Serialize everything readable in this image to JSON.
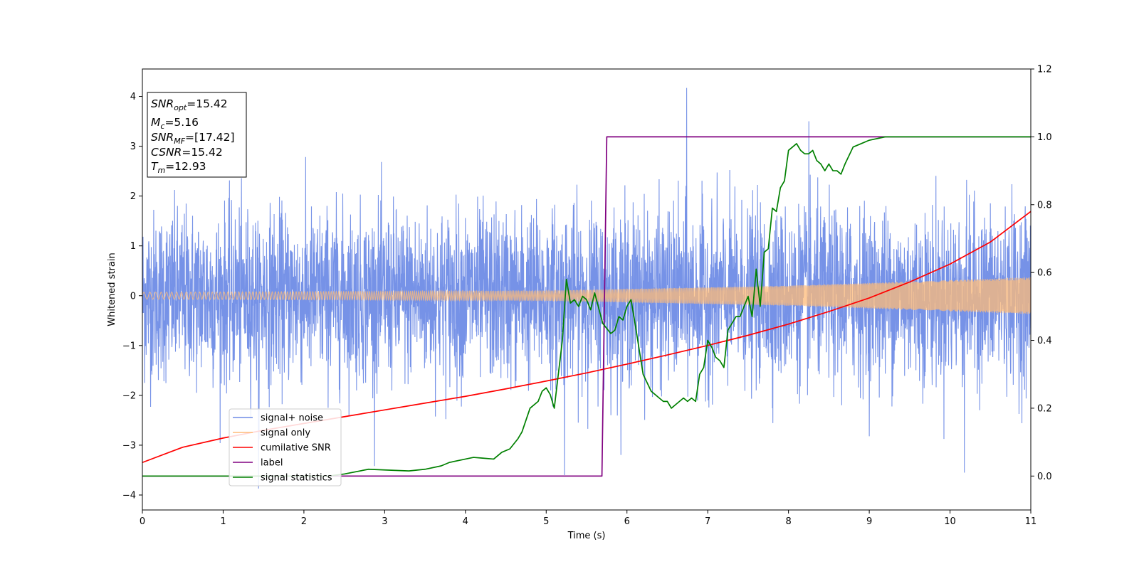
{
  "chart_data": {
    "type": "line",
    "title": "",
    "xlabel": "Time (s)",
    "ylabel": "Whitened strain",
    "xlim": [
      0,
      11
    ],
    "ylim": [
      -4.3,
      4.55
    ],
    "y2lim": [
      -0.1,
      1.2
    ],
    "xticks": [
      "0",
      "1",
      "2",
      "3",
      "4",
      "5",
      "6",
      "7",
      "8",
      "9",
      "10",
      "11"
    ],
    "yticks": [
      "−4",
      "−3",
      "−2",
      "−1",
      "0",
      "1",
      "2",
      "3",
      "4"
    ],
    "y2ticks": [
      "0.0",
      "0.2",
      "0.4",
      "0.6",
      "0.8",
      "1.0",
      "1.2"
    ],
    "grid": false,
    "legend_position": "lower-left",
    "annotation": {
      "snr_opt": {
        "main": "SNR",
        "sub": "opt",
        "value": "=15.42"
      },
      "mc": {
        "main": "M",
        "sub": "c",
        "value": "=5.16"
      },
      "snr_mf": {
        "main": "SNR",
        "sub": "MF",
        "value": "=[17.42]"
      },
      "csnr": {
        "main": "CSNR",
        "value": "=15.42"
      },
      "tm": {
        "main": "T",
        "sub": "m",
        "value": "=12.93"
      }
    },
    "series": [
      {
        "name": "signal+ noise",
        "color": "#6f8ce6",
        "axis": "left",
        "kind": "noise",
        "std": 0.85,
        "x_range": [
          0,
          11
        ],
        "min": -3.87,
        "max": 4.17
      },
      {
        "name": "signal only",
        "color": "#ffbb78",
        "axis": "left",
        "kind": "chirp",
        "x_range": [
          0,
          11
        ],
        "amplitude": {
          "x": [
            0,
            5,
            8,
            11
          ],
          "y": [
            0.07,
            0.1,
            0.2,
            0.37
          ]
        }
      },
      {
        "name": "cumilative SNR",
        "color": "#ff0000",
        "axis": "right",
        "x": [
          0,
          0.5,
          1,
          1.5,
          2,
          2.5,
          3,
          3.5,
          4,
          4.5,
          5,
          5.5,
          6,
          6.5,
          7,
          7.5,
          8,
          8.5,
          9,
          9.5,
          10,
          10.5,
          11
        ],
        "y": [
          0.04,
          0.085,
          0.112,
          0.135,
          0.155,
          0.175,
          0.195,
          0.215,
          0.235,
          0.257,
          0.28,
          0.304,
          0.33,
          0.357,
          0.385,
          0.415,
          0.448,
          0.485,
          0.525,
          0.572,
          0.625,
          0.69,
          0.78
        ]
      },
      {
        "name": "label",
        "color": "#800080",
        "axis": "right",
        "x": [
          0,
          5.69,
          5.75,
          11
        ],
        "y": [
          0.0,
          0.0,
          1.0,
          1.0
        ]
      },
      {
        "name": "signal statistics",
        "color": "#008000",
        "axis": "right",
        "x": [
          0,
          2.3,
          2.5,
          2.8,
          3.0,
          3.3,
          3.5,
          3.7,
          3.8,
          4.0,
          4.1,
          4.2,
          4.35,
          4.45,
          4.55,
          4.65,
          4.7,
          4.8,
          4.9,
          4.95,
          5.0,
          5.05,
          5.1,
          5.15,
          5.2,
          5.25,
          5.3,
          5.35,
          5.4,
          5.45,
          5.5,
          5.55,
          5.6,
          5.7,
          5.8,
          5.85,
          5.9,
          5.95,
          6.0,
          6.05,
          6.1,
          6.2,
          6.3,
          6.4,
          6.45,
          6.5,
          6.55,
          6.6,
          6.7,
          6.75,
          6.8,
          6.85,
          6.9,
          6.95,
          7.0,
          7.05,
          7.1,
          7.15,
          7.2,
          7.25,
          7.3,
          7.35,
          7.4,
          7.5,
          7.55,
          7.6,
          7.65,
          7.7,
          7.75,
          7.8,
          7.85,
          7.9,
          7.95,
          8.0,
          8.05,
          8.1,
          8.15,
          8.2,
          8.25,
          8.3,
          8.35,
          8.4,
          8.45,
          8.5,
          8.55,
          8.6,
          8.65,
          8.7,
          8.8,
          8.9,
          9.0,
          9.2,
          9.5,
          10.0,
          11.0
        ],
        "y": [
          0.0,
          0.0,
          0.006,
          0.02,
          0.018,
          0.015,
          0.02,
          0.03,
          0.04,
          0.05,
          0.055,
          0.053,
          0.05,
          0.07,
          0.08,
          0.11,
          0.13,
          0.2,
          0.22,
          0.25,
          0.26,
          0.24,
          0.2,
          0.3,
          0.4,
          0.58,
          0.51,
          0.52,
          0.5,
          0.53,
          0.52,
          0.49,
          0.54,
          0.45,
          0.42,
          0.43,
          0.47,
          0.46,
          0.5,
          0.52,
          0.45,
          0.3,
          0.25,
          0.23,
          0.22,
          0.22,
          0.2,
          0.21,
          0.23,
          0.22,
          0.23,
          0.22,
          0.3,
          0.32,
          0.4,
          0.38,
          0.35,
          0.34,
          0.32,
          0.43,
          0.45,
          0.47,
          0.47,
          0.53,
          0.47,
          0.61,
          0.5,
          0.66,
          0.67,
          0.79,
          0.78,
          0.85,
          0.87,
          0.96,
          0.97,
          0.98,
          0.96,
          0.95,
          0.95,
          0.96,
          0.93,
          0.92,
          0.9,
          0.92,
          0.9,
          0.9,
          0.89,
          0.92,
          0.97,
          0.98,
          0.99,
          1.0,
          1.0,
          1.0,
          1.0
        ]
      }
    ]
  }
}
